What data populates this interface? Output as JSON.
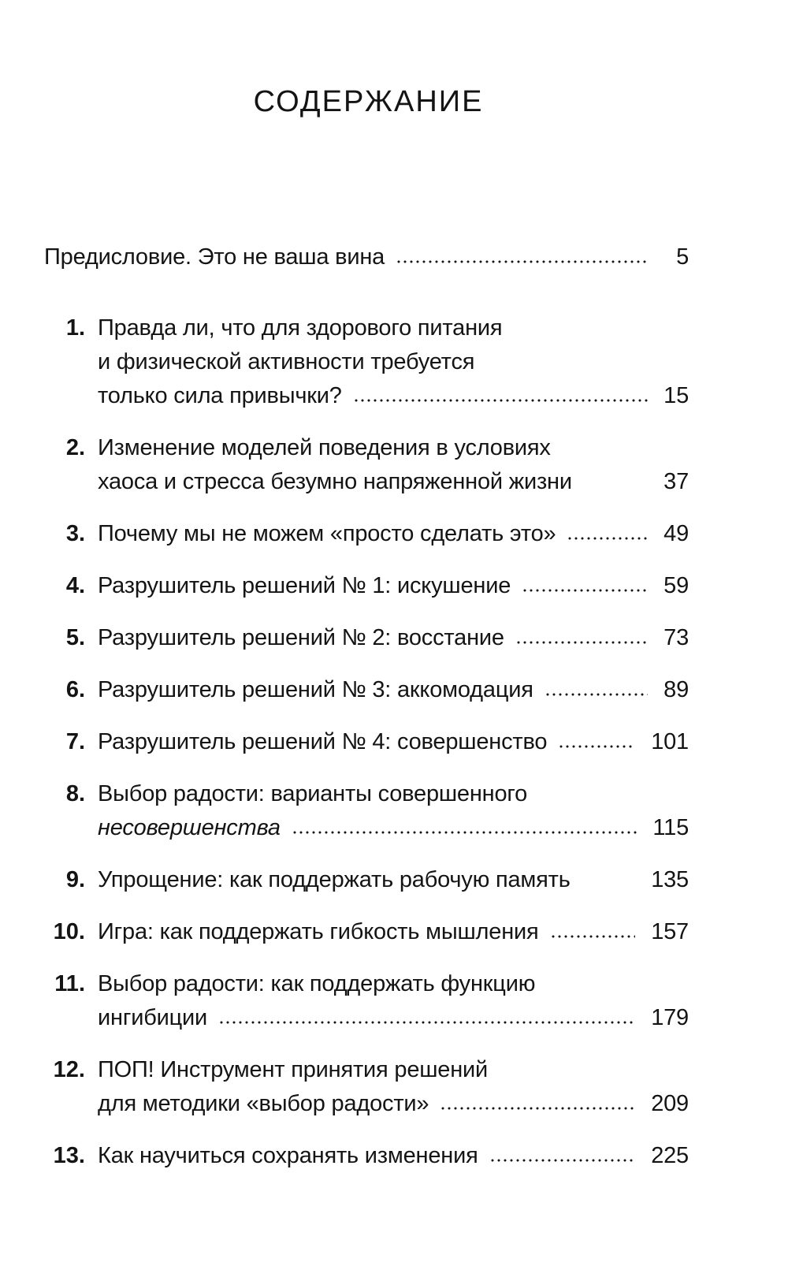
{
  "title": "СОДЕРЖАНИЕ",
  "preface": {
    "text": "Предисловие. Это не ваша вина",
    "page": "5",
    "dots": true
  },
  "entries": [
    {
      "number": "1.",
      "lines": [
        "Правда ли, что для здорового питания",
        "и физической активности требуется",
        "только сила привычки?"
      ],
      "page": "15",
      "dots": true
    },
    {
      "number": "2.",
      "lines": [
        "Изменение моделей поведения в условиях",
        "хаоса и стресса безумно напряженной жизни"
      ],
      "page": "37",
      "dots": false
    },
    {
      "number": "3.",
      "lines": [
        "Почему мы не можем «просто сделать это»"
      ],
      "page": "49",
      "dots": true
    },
    {
      "number": "4.",
      "lines": [
        "Разрушитель решений № 1: искушение"
      ],
      "page": "59",
      "dots": true
    },
    {
      "number": "5.",
      "lines": [
        "Разрушитель решений № 2: восстание"
      ],
      "page": "73",
      "dots": true
    },
    {
      "number": "6.",
      "lines": [
        "Разрушитель решений № 3: аккомодация"
      ],
      "page": "89",
      "dots": true
    },
    {
      "number": "7.",
      "lines": [
        "Разрушитель решений № 4: совершенство"
      ],
      "page": "101",
      "dots": true
    },
    {
      "number": "8.",
      "lines": [
        "Выбор радости: варианты совершенного",
        "несовершенства"
      ],
      "italic_last_line": true,
      "page": "115",
      "dots": true
    },
    {
      "number": "9.",
      "lines": [
        "Упрощение: как поддержать рабочую память"
      ],
      "page": "135",
      "dots": false
    },
    {
      "number": "10.",
      "lines": [
        "Игра: как поддержать гибкость мышления"
      ],
      "page": "157",
      "dots": true
    },
    {
      "number": "11.",
      "lines": [
        "Выбор радости: как поддержать функцию",
        "ингибиции"
      ],
      "page": "179",
      "dots": true
    },
    {
      "number": "12.",
      "lines": [
        "ПОП! Инструмент принятия решений",
        "для методики «выбор радости»"
      ],
      "page": "209",
      "dots": true
    },
    {
      "number": "13.",
      "lines": [
        "Как научиться сохранять изменения"
      ],
      "page": "225",
      "dots": true
    }
  ]
}
